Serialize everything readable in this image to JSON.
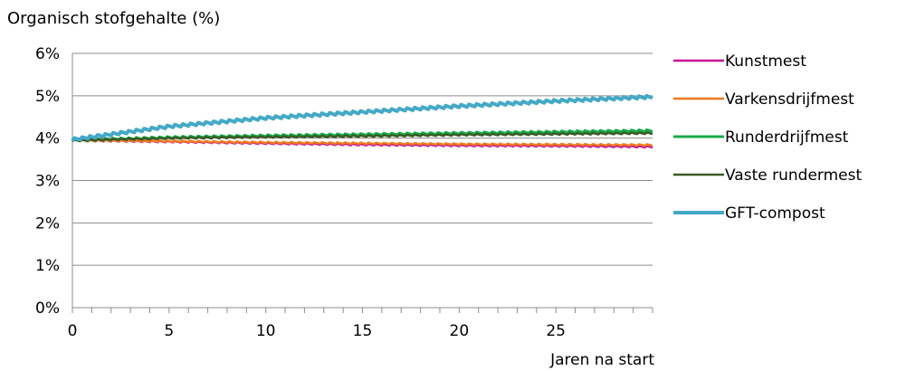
{
  "chart_data": {
    "type": "line",
    "title": "Organisch stofgehalte (%)",
    "xlabel": "Jaren na start",
    "ylabel": "",
    "xlim": [
      0,
      30
    ],
    "ylim": [
      0,
      6
    ],
    "x_ticks": [
      "0",
      "5",
      "10",
      "15",
      "20",
      "25"
    ],
    "y_ticks": [
      "0%",
      "1%",
      "2%",
      "3%",
      "4%",
      "5%",
      "6%"
    ],
    "grid": "horizontal",
    "legend_position": "right",
    "series": [
      {
        "name": "Kunstmest",
        "color": "#C6109A",
        "x": [
          0,
          5,
          10,
          15,
          20,
          25,
          30
        ],
        "values": [
          3.95,
          3.92,
          3.88,
          3.85,
          3.83,
          3.82,
          3.8
        ]
      },
      {
        "name": "Varkensdrijfmest",
        "color": "#F07B1E",
        "x": [
          0,
          5,
          10,
          15,
          20,
          25,
          30
        ],
        "values": [
          3.95,
          3.93,
          3.9,
          3.88,
          3.86,
          3.85,
          3.84
        ]
      },
      {
        "name": "Runderdrijfmest",
        "color": "#18A94A",
        "x": [
          0,
          5,
          10,
          15,
          20,
          25,
          30
        ],
        "values": [
          3.95,
          4.02,
          4.06,
          4.09,
          4.12,
          4.15,
          4.18
        ]
      },
      {
        "name": "Vaste rundermest",
        "color": "#3A5A24",
        "x": [
          0,
          5,
          10,
          15,
          20,
          25,
          30
        ],
        "values": [
          3.95,
          4.0,
          4.03,
          4.05,
          4.08,
          4.1,
          4.12
        ]
      },
      {
        "name": "GFT-compost",
        "color": "#44A9C6",
        "x": [
          0,
          5,
          10,
          15,
          20,
          25,
          30
        ],
        "values": [
          3.97,
          4.28,
          4.48,
          4.62,
          4.76,
          4.88,
          4.98
        ]
      }
    ]
  }
}
